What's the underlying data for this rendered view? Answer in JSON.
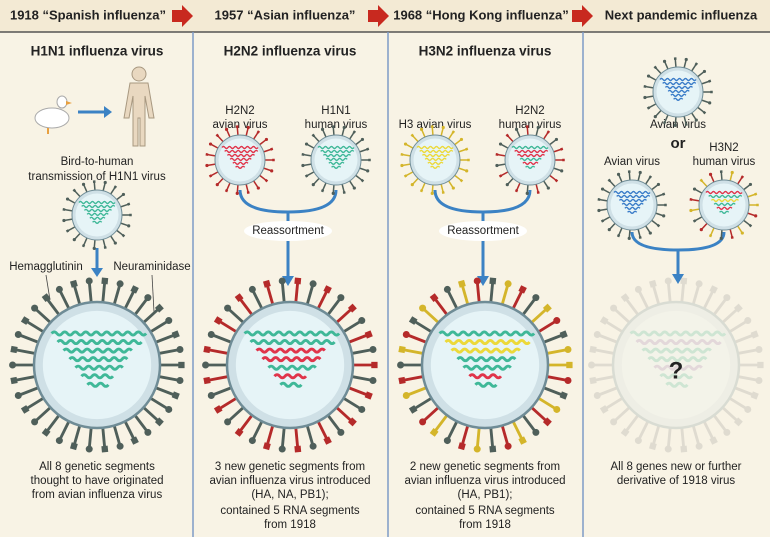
{
  "timeline": [
    "1918 “Spanish influenza”",
    "1957 “Asian influenza”",
    "1968 “Hong Kong influenza”",
    "Next pandemic influenza"
  ],
  "columns": [
    {
      "title": "H1N1 influenza virus",
      "transmission": [
        "Bird-to-human",
        "transmission of H1N1 virus"
      ],
      "parts": [
        "Hemagglutinin",
        "Neuraminidase"
      ],
      "caption": [
        "All 8 genetic segments",
        "thought to have originated",
        "from avian influenza virus"
      ]
    },
    {
      "title": "H2N2 influenza virus",
      "sources": [
        [
          "H2N2",
          "avian virus"
        ],
        [
          "H1N1",
          "human virus"
        ]
      ],
      "process": "Reassortment",
      "caption": [
        "3 new genetic segments from",
        "avian influenza virus introduced",
        "(HA, NA, PB1);",
        "contained 5 RNA segments",
        "from 1918"
      ]
    },
    {
      "title": "H3N2 influenza virus",
      "sources": [
        [
          "H3 avian virus"
        ],
        [
          "H2N2",
          "human virus"
        ]
      ],
      "process": "Reassortment",
      "caption": [
        "2 new genetic segments from",
        "avian influenza virus introduced",
        "(HA, PB1);",
        "contained 5 RNA segments",
        "from 1918"
      ]
    },
    {
      "title": "Next pandemic influenza",
      "sources": [
        [
          "Avian virus"
        ],
        [
          "Avian virus"
        ],
        [
          "H3N2",
          "human virus"
        ]
      ],
      "or": "or",
      "unknown": "?",
      "caption": [
        "All 8 genes new or further",
        "derivative of 1918 virus"
      ]
    }
  ]
}
